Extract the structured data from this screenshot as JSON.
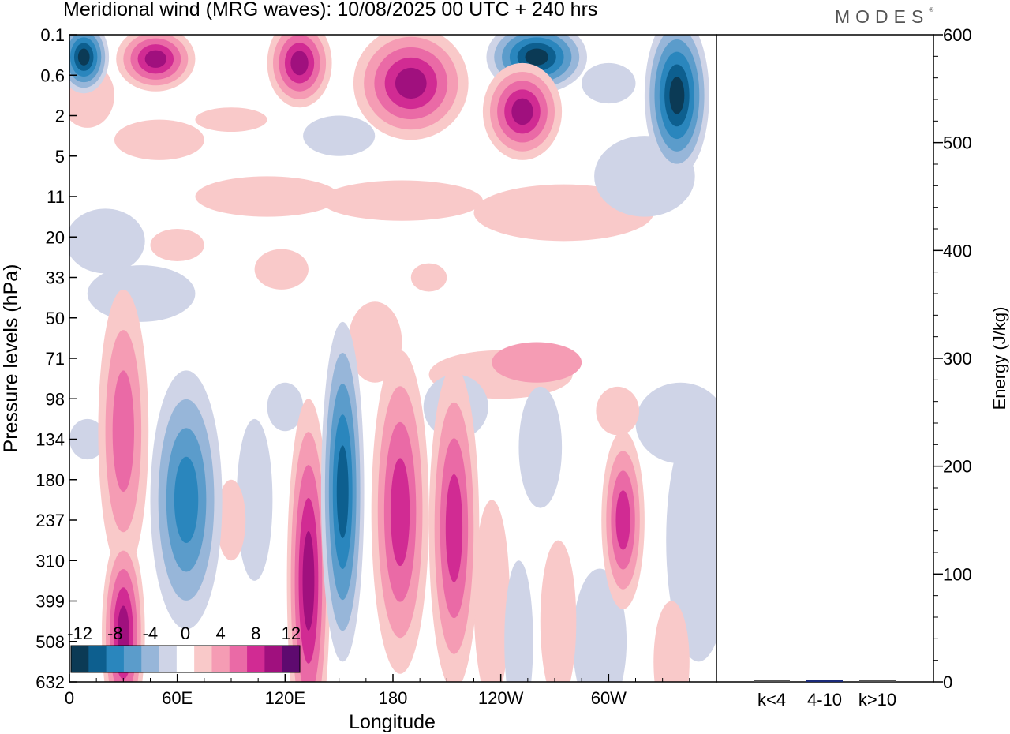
{
  "title": "Meridional wind (MRG waves):  10/08/2025  00 UTC  + 240 hrs",
  "logo": "MODES",
  "chart_data": [
    {
      "type": "heatmap",
      "title": "Meridional wind (MRG waves)",
      "xlabel": "Longitude",
      "ylabel": "Pressure levels (hPa)",
      "x_ticks": [
        "0",
        "60E",
        "120E",
        "180",
        "120W",
        "60W"
      ],
      "x_tick_values": [
        0,
        60,
        120,
        180,
        240,
        300
      ],
      "xlim": [
        0,
        360
      ],
      "y_ticks": [
        "0.1",
        "0.6",
        "2",
        "5",
        "11",
        "20",
        "33",
        "50",
        "71",
        "98",
        "134",
        "180",
        "237",
        "310",
        "399",
        "508",
        "632"
      ],
      "colorbar": {
        "tick_labels": [
          "-12",
          "-8",
          "-4",
          "0",
          "4",
          "8",
          "12"
        ],
        "levels": [
          -14,
          -12,
          -10,
          -8,
          -6,
          -4,
          -2,
          2,
          4,
          6,
          8,
          10,
          12,
          14
        ],
        "colors": [
          "#0b3a55",
          "#0d5f8f",
          "#2a86bd",
          "#5b9ccb",
          "#97b6d9",
          "#cfd4e7",
          "#ffffff",
          "#f9c9c9",
          "#f59cb4",
          "#ea6aa6",
          "#d12b93",
          "#a0107e",
          "#5e0a6f"
        ]
      },
      "features": [
        {
          "lon": 8,
          "plev_index": 0.55,
          "value": -13
        },
        {
          "lon": 48,
          "plev_index": 0.6,
          "value": 11
        },
        {
          "lon": 128,
          "plev_index": 0.7,
          "value": 11
        },
        {
          "lon": 190,
          "plev_index": 1.2,
          "value": 10
        },
        {
          "lon": 260,
          "plev_index": 0.55,
          "value": -13
        },
        {
          "lon": 252,
          "plev_index": 1.9,
          "value": 10
        },
        {
          "lon": 338,
          "plev_index": 1.5,
          "value": -13
        },
        {
          "lon": 30,
          "plev_index": 9.8,
          "value": 6
        },
        {
          "lon": 65,
          "plev_index": 11.5,
          "value": -8
        },
        {
          "lon": 133,
          "plev_index": 13.5,
          "value": 11
        },
        {
          "lon": 152,
          "plev_index": 11.3,
          "value": -10
        },
        {
          "lon": 184,
          "plev_index": 11.8,
          "value": 9
        },
        {
          "lon": 214,
          "plev_index": 12.2,
          "value": 9
        },
        {
          "lon": 30,
          "plev_index": 14.8,
          "value": 10
        },
        {
          "lon": 308,
          "plev_index": 12,
          "value": 8
        }
      ]
    },
    {
      "type": "bar",
      "ylabel": "Energy (J/kg)",
      "categories": [
        "k<4",
        "4-10",
        "k>10"
      ],
      "values": [
        0,
        2,
        0
      ],
      "ylim": [
        0,
        600
      ],
      "y_ticks": [
        "0",
        "100",
        "200",
        "300",
        "400",
        "500",
        "600"
      ]
    }
  ]
}
